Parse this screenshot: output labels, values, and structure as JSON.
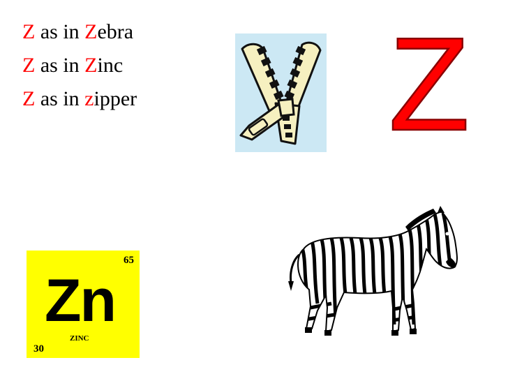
{
  "phrases": [
    {
      "letter": "Z",
      "middle": " as in ",
      "word_letter": "Z",
      "word_rest": "ebra"
    },
    {
      "letter": "Z",
      "middle": " as in ",
      "word_letter": "Z",
      "word_rest": "inc"
    },
    {
      "letter": "Z",
      "middle": " as in ",
      "word_letter": "z",
      "word_rest": "ipper"
    }
  ],
  "element": {
    "symbol": "Zn",
    "name": "ZINC",
    "atomic_number": "30",
    "mass": "65"
  },
  "big_letter": "Z",
  "colors": {
    "highlight": "#ff0000",
    "element_bg": "#ffff00",
    "zipper_bg": "#cce8f4",
    "zipper_fill": "#f6f0c0"
  },
  "images": [
    "zipper-picture",
    "zebra-picture"
  ]
}
